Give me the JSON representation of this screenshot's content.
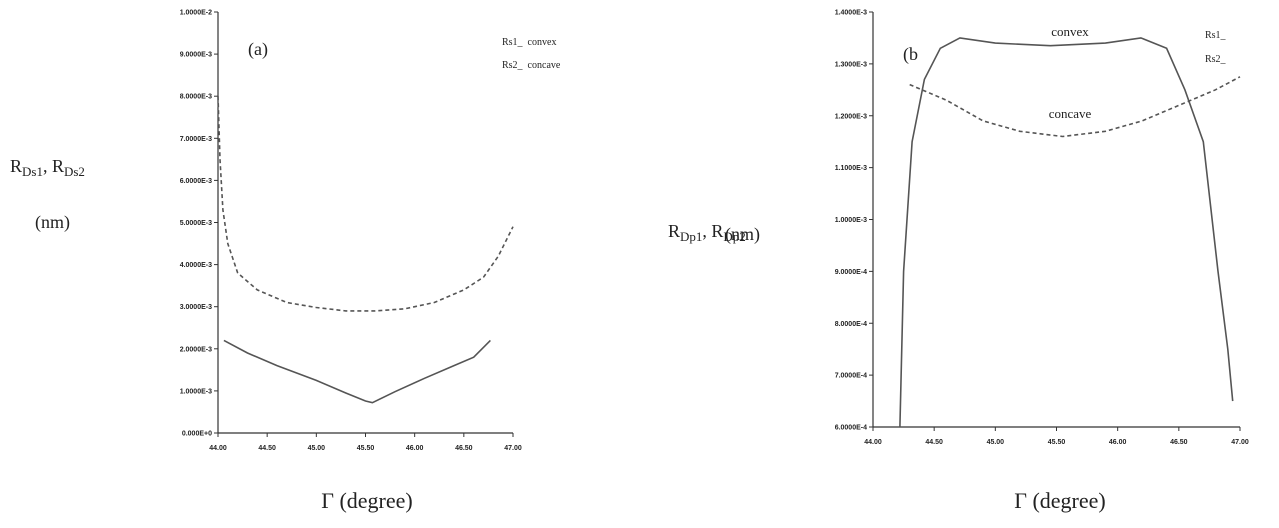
{
  "chart_data": [
    {
      "type": "line",
      "panel_label": "(a)",
      "y_label": [
        "R",
        "Ds1",
        ", R",
        "Ds2"
      ],
      "y_unit": "(nm)",
      "x_label": "Γ (degree)",
      "xlim": [
        44,
        47
      ],
      "xticks": [
        {
          "value": 44,
          "label": "44.00"
        },
        {
          "value": 44.5,
          "label": "44.50"
        },
        {
          "value": 45,
          "label": "45.00"
        },
        {
          "value": 45.5,
          "label": "45.50"
        },
        {
          "value": 46,
          "label": "46.00"
        },
        {
          "value": 46.5,
          "label": "46.50"
        },
        {
          "value": 47,
          "label": "47.00"
        }
      ],
      "ylim": [
        0,
        0.01
      ],
      "yticks": [
        {
          "value": 0,
          "label": "0.000E+0"
        },
        {
          "value": 0.001,
          "label": "1.0000E-3"
        },
        {
          "value": 0.002,
          "label": "2.0000E-3"
        },
        {
          "value": 0.003,
          "label": "3.0000E-3"
        },
        {
          "value": 0.004,
          "label": "4.0000E-3"
        },
        {
          "value": 0.005,
          "label": "5.0000E-3"
        },
        {
          "value": 0.006,
          "label": "6.0000E-3"
        },
        {
          "value": 0.007,
          "label": "7.0000E-3"
        },
        {
          "value": 0.008,
          "label": "8.0000E-3"
        },
        {
          "value": 0.009,
          "label": "9.0000E-3"
        },
        {
          "value": 0.01,
          "label": "1.0000E-2"
        }
      ],
      "annotations": [],
      "series": [
        {
          "name": "Rs1_  convex",
          "color": "#555555",
          "dash": false,
          "x": [
            44.06,
            44.3,
            44.6,
            45.0,
            45.3,
            45.5,
            45.57,
            45.8,
            46.1,
            46.4,
            46.6,
            46.77
          ],
          "values": [
            0.0022,
            0.0019,
            0.0016,
            0.00125,
            0.00095,
            0.00076,
            0.00072,
            0.00098,
            0.0013,
            0.0016,
            0.0018,
            0.0022
          ]
        },
        {
          "name": "Rs2_  concave",
          "color": "#555555",
          "dash": true,
          "x": [
            44.0,
            44.02,
            44.05,
            44.1,
            44.2,
            44.4,
            44.7,
            45.0,
            45.3,
            45.6,
            45.9,
            46.2,
            46.5,
            46.7,
            46.85,
            47.0
          ],
          "values": [
            0.008,
            0.0065,
            0.0053,
            0.0045,
            0.0038,
            0.0034,
            0.0031,
            0.00298,
            0.0029,
            0.0029,
            0.00295,
            0.0031,
            0.0034,
            0.0037,
            0.0042,
            0.0049
          ]
        }
      ]
    },
    {
      "type": "line",
      "panel_label": "(b",
      "y_label": [
        "R",
        "Dp1",
        ", R",
        "Dp2"
      ],
      "y_unit": "(nm)",
      "x_label": "Γ (degree)",
      "xlim": [
        44,
        47
      ],
      "xticks": [
        {
          "value": 44,
          "label": "44.00"
        },
        {
          "value": 44.5,
          "label": "44.50"
        },
        {
          "value": 45,
          "label": "45.00"
        },
        {
          "value": 45.5,
          "label": "45.50"
        },
        {
          "value": 46,
          "label": "46.00"
        },
        {
          "value": 46.5,
          "label": "46.50"
        },
        {
          "value": 47,
          "label": "47.00"
        }
      ],
      "ylim": [
        0.0006,
        0.0014
      ],
      "yticks": [
        {
          "value": 0.0006,
          "label": "6.0000E-4"
        },
        {
          "value": 0.0007,
          "label": "7.0000E-4"
        },
        {
          "value": 0.0008,
          "label": "8.0000E-4"
        },
        {
          "value": 0.0009,
          "label": "9.0000E-4"
        },
        {
          "value": 0.001,
          "label": "1.0000E-3"
        },
        {
          "value": 0.0011,
          "label": "1.1000E-3"
        },
        {
          "value": 0.0012,
          "label": "1.2000E-3"
        },
        {
          "value": 0.0013,
          "label": "1.3000E-3"
        },
        {
          "value": 0.0014,
          "label": "1.4000E-3"
        }
      ],
      "annotations": [
        "convex",
        "concave"
      ],
      "series": [
        {
          "name": "Rs1_",
          "color": "#555555",
          "dash": false,
          "x": [
            44.22,
            44.25,
            44.32,
            44.42,
            44.55,
            44.71,
            45.0,
            45.45,
            45.9,
            46.19,
            46.4,
            46.55,
            46.7,
            46.82,
            46.9,
            46.94
          ],
          "values": [
            0.0006,
            0.0009,
            0.00115,
            0.00127,
            0.00133,
            0.00135,
            0.00134,
            0.001335,
            0.00134,
            0.00135,
            0.00133,
            0.00125,
            0.00115,
            0.0009,
            0.00075,
            0.00065
          ]
        },
        {
          "name": "Rs2_",
          "color": "#555555",
          "dash": true,
          "x": [
            44.3,
            44.6,
            44.9,
            45.2,
            45.55,
            45.9,
            46.2,
            46.5,
            46.8,
            47.0
          ],
          "values": [
            0.00126,
            0.00123,
            0.00119,
            0.00117,
            0.00116,
            0.00117,
            0.00119,
            0.00122,
            0.00125,
            0.001275
          ]
        }
      ]
    }
  ]
}
